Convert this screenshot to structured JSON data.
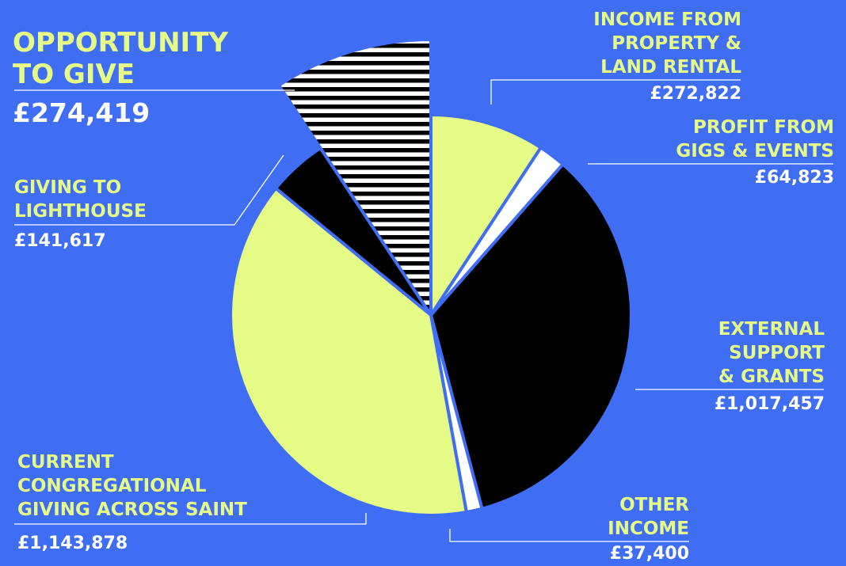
{
  "colors": {
    "background": "#3f6ef5",
    "accent_yellow": "#e6fb86",
    "black": "#000000",
    "white": "#ffffff"
  },
  "chart_data": {
    "type": "pie",
    "title": "",
    "slices": [
      {
        "key": "property",
        "label": "Income from property & land rental",
        "value": 272822,
        "display": "£272,822",
        "fill": "#e6fb86",
        "pattern": "solid"
      },
      {
        "key": "gigs",
        "label": "Profit from gigs & events",
        "value": 64823,
        "display": "£64,823",
        "fill": "#ffffff",
        "pattern": "solid"
      },
      {
        "key": "external",
        "label": "External support & grants",
        "value": 1017457,
        "display": "£1,017,457",
        "fill": "#000000",
        "pattern": "solid"
      },
      {
        "key": "other",
        "label": "Other income",
        "value": 37400,
        "display": "£37,400",
        "fill": "#ffffff",
        "pattern": "solid"
      },
      {
        "key": "congregational",
        "label": "Current congregational giving across Saint",
        "value": 1143878,
        "display": "£1,143,878",
        "fill": "#e6fb86",
        "pattern": "solid"
      },
      {
        "key": "lighthouse",
        "label": "Giving to Lighthouse",
        "value": 141617,
        "display": "£141,617",
        "fill": "#000000",
        "pattern": "solid"
      },
      {
        "key": "opportunity",
        "label": "Opportunity to give",
        "value": 274419,
        "display": "£274,419",
        "fill": "#000000",
        "pattern": "stripes",
        "exploded": true
      }
    ]
  },
  "labels": {
    "opportunity": {
      "name": "OPPORTUNITY\nTO GIVE",
      "value": "£274,419"
    },
    "property": {
      "name": "INCOME FROM\nPROPERTY &\nLAND RENTAL",
      "value": "£272,822"
    },
    "gigs": {
      "name": "PROFIT FROM\nGIGS & EVENTS",
      "value": "£64,823"
    },
    "lighthouse": {
      "name": "GIVING TO\nLIGHTHOUSE",
      "value": "£141,617"
    },
    "external": {
      "name": "EXTERNAL\nSUPPORT\n& GRANTS",
      "value": "£1,017,457"
    },
    "congregational": {
      "name": "CURRENT\nCONGREGATIONAL\nGIVING ACROSS SAINT",
      "value": "£1,143,878"
    },
    "other": {
      "name": "OTHER\nINCOME",
      "value": "£37,400"
    }
  }
}
